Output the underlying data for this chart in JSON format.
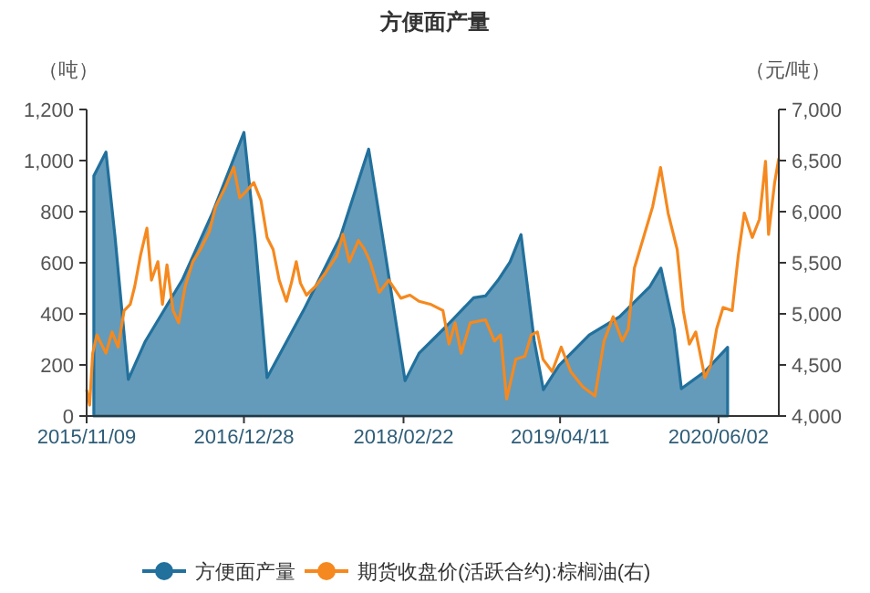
{
  "chart_data": {
    "type": "line",
    "title": "方便面产量",
    "ylabel": "（吨）",
    "y2label": "（元/吨）",
    "legend": "bottom",
    "xlim": [
      "2015-11-09",
      "2020-11-08"
    ],
    "xticks": [
      {
        "value": "2015-11-09",
        "label": "2015/11/09"
      },
      {
        "value": "2016-12-28",
        "label": "2016/12/28"
      },
      {
        "value": "2018-02-22",
        "label": "2018/02/22"
      },
      {
        "value": "2019-04-11",
        "label": "2019/04/11"
      },
      {
        "value": "2020-06-02",
        "label": "2020/06/02"
      }
    ],
    "ylim": [
      0,
      1200
    ],
    "yticks": [
      0,
      200,
      400,
      600,
      800,
      {
        "value": 1000,
        "label": "1,000"
      },
      {
        "value": 1200,
        "label": "1,200"
      }
    ],
    "y2lim": [
      4000,
      7000
    ],
    "y2ticks": [
      {
        "value": 4000,
        "label": "4,000"
      },
      {
        "value": 4500,
        "label": "4,500"
      },
      {
        "value": 5000,
        "label": "5,000"
      },
      {
        "value": 5500,
        "label": "5,500"
      },
      {
        "value": 6000,
        "label": "6,000"
      },
      {
        "value": 6500,
        "label": "6,500"
      },
      {
        "value": 7000,
        "label": "7,000"
      }
    ],
    "series": [
      {
        "name": "方便面产量",
        "type": "area",
        "color": "#22709c",
        "x": [
          "2015-11-28",
          "2015-12-30",
          "2016-01-23",
          "2016-02-27",
          "2016-04-12",
          "2016-07-18",
          "2016-10-06",
          "2016-12-28",
          "2017-01-26",
          "2017-02-27",
          "2017-06-03",
          "2017-09-08",
          "2017-11-22",
          "2017-12-29",
          "2018-02-26",
          "2018-04-04",
          "2018-06-14",
          "2018-08-26",
          "2018-09-26",
          "2018-10-29",
          "2018-11-30",
          "2018-12-29",
          "2019-02-02",
          "2019-02-26",
          "2019-04-08",
          "2019-06-27",
          "2019-09-15",
          "2019-12-04",
          "2020-01-02",
          "2020-02-06",
          "2020-02-25",
          "2020-04-27",
          "2020-06-26"
        ],
        "values": [
          940,
          1033,
          700,
          143,
          293,
          532,
          795,
          1110,
          700,
          150,
          413,
          700,
          1045,
          700,
          138,
          246,
          350,
          463,
          470,
          531,
          603,
          710,
          293,
          103,
          198,
          317,
          389,
          507,
          579,
          341,
          107,
          174,
          269
        ]
      },
      {
        "name": "期货收盘价(活跃合约):棕榈油(右)",
        "type": "line",
        "axis": "y2",
        "color": "#f5891f",
        "x": [
          "2015-11-09",
          "2015-11-17",
          "2015-11-25",
          "2015-12-06",
          "2015-12-30",
          "2016-01-15",
          "2016-01-31",
          "2016-02-16",
          "2016-03-03",
          "2016-03-15",
          "2016-03-30",
          "2016-04-16",
          "2016-04-28",
          "2016-05-15",
          "2016-05-27",
          "2016-06-08",
          "2016-06-24",
          "2016-07-09",
          "2016-07-26",
          "2016-08-15",
          "2016-09-04",
          "2016-09-28",
          "2016-10-14",
          "2016-11-07",
          "2016-12-01",
          "2016-12-17",
          "2017-01-02",
          "2017-01-23",
          "2017-02-11",
          "2017-02-27",
          "2017-03-15",
          "2017-03-31",
          "2017-04-19",
          "2017-05-02",
          "2017-05-15",
          "2017-05-26",
          "2017-06-11",
          "2017-07-05",
          "2017-07-29",
          "2017-08-30",
          "2017-09-15",
          "2017-10-02",
          "2017-10-26",
          "2017-11-11",
          "2017-11-26",
          "2017-12-20",
          "2018-01-14",
          "2018-02-15",
          "2018-03-11",
          "2018-04-04",
          "2018-05-06",
          "2018-06-06",
          "2018-06-22",
          "2018-07-08",
          "2018-07-24",
          "2018-08-17",
          "2018-09-26",
          "2018-10-20",
          "2018-11-05",
          "2018-11-21",
          "2018-12-15",
          "2019-01-08",
          "2019-01-25",
          "2019-02-10",
          "2019-02-25",
          "2019-03-21",
          "2019-04-14",
          "2019-05-09",
          "2019-06-10",
          "2019-07-12",
          "2019-08-05",
          "2019-08-29",
          "2019-09-22",
          "2019-10-08",
          "2019-10-24",
          "2019-11-17",
          "2019-12-11",
          "2020-01-01",
          "2020-01-21",
          "2020-02-14",
          "2020-03-01",
          "2020-03-17",
          "2020-04-03",
          "2020-04-27",
          "2020-05-12",
          "2020-05-28",
          "2020-06-14",
          "2020-07-08",
          "2020-07-24",
          "2020-08-09",
          "2020-08-30",
          "2020-09-18",
          "2020-10-04",
          "2020-10-12",
          "2020-10-28",
          "2020-11-08"
        ],
        "values": [
          4257,
          4107,
          4615,
          4793,
          4615,
          4823,
          4675,
          5033,
          5093,
          5270,
          5570,
          5838,
          5330,
          5510,
          5093,
          5480,
          5033,
          4913,
          5270,
          5510,
          5630,
          5808,
          6048,
          6225,
          6435,
          6135,
          6195,
          6285,
          6108,
          5748,
          5630,
          5330,
          5123,
          5300,
          5510,
          5300,
          5183,
          5270,
          5390,
          5570,
          5778,
          5510,
          5718,
          5630,
          5510,
          5210,
          5330,
          5153,
          5183,
          5123,
          5091,
          5032,
          4704,
          4912,
          4614,
          4912,
          4942,
          4734,
          4793,
          4167,
          4555,
          4584,
          4793,
          4823,
          4555,
          4435,
          4674,
          4435,
          4286,
          4197,
          4734,
          4972,
          4734,
          4853,
          5449,
          5747,
          6046,
          6433,
          5986,
          5628,
          5032,
          4704,
          4823,
          4376,
          4495,
          4853,
          5062,
          5032,
          5568,
          5986,
          5747,
          5926,
          6493,
          5777,
          6284,
          6523
        ]
      }
    ]
  }
}
